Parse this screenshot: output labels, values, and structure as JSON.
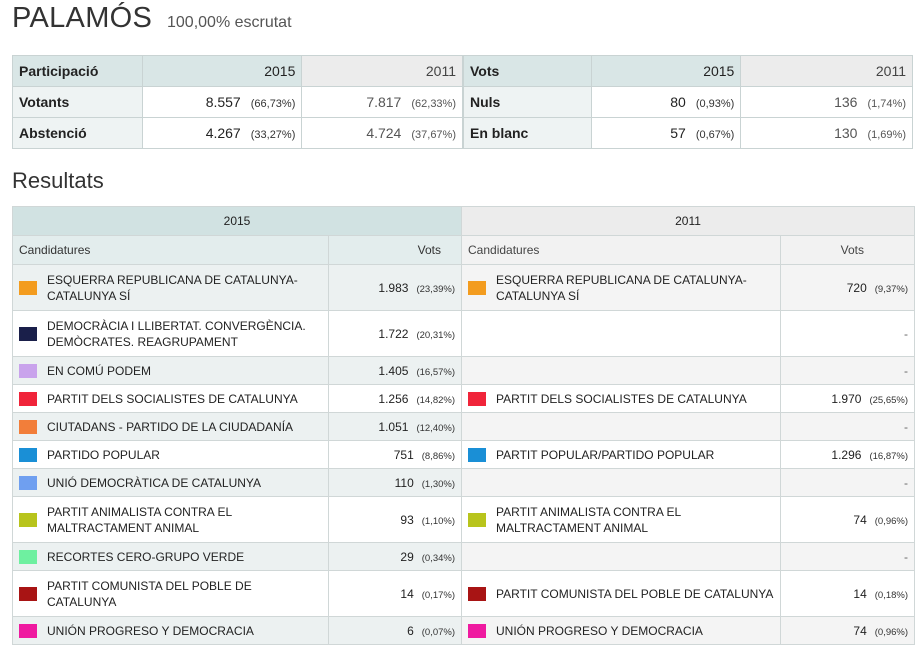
{
  "header": {
    "title": "PALAMÓS",
    "subtitle": "100,00% escrutat"
  },
  "participation": {
    "label": "Participació",
    "year_2015": "2015",
    "year_2011": "2011",
    "rows": [
      {
        "label": "Votants",
        "v2015": "8.557",
        "p2015": "(66,73%)",
        "v2011": "7.817",
        "p2011": "(62,33%)"
      },
      {
        "label": "Abstenció",
        "v2015": "4.267",
        "p2015": "(33,27%)",
        "v2011": "4.724",
        "p2011": "(37,67%)"
      }
    ]
  },
  "votes": {
    "label": "Vots",
    "year_2015": "2015",
    "year_2011": "2011",
    "rows": [
      {
        "label": "Nuls",
        "v2015": "80",
        "p2015": "(0,93%)",
        "v2011": "136",
        "p2011": "(1,74%)"
      },
      {
        "label": "En blanc",
        "v2015": "57",
        "p2015": "(0,67%)",
        "v2011": "130",
        "p2011": "(1,69%)"
      }
    ]
  },
  "results": {
    "heading": "Resultats",
    "year_2015": "2015",
    "year_2011": "2011",
    "col_candidates": "Candidatures",
    "col_votes": "Vots",
    "rows": [
      {
        "c15": "ESQUERRA REPUBLICANA DE CATALUNYA-CATALUNYA SÍ",
        "col15": "#f39c1f",
        "v15": "1.983",
        "p15": "(23,39%)",
        "c11": "ESQUERRA REPUBLICANA DE CATALUNYA-CATALUNYA SÍ",
        "col11": "#f39c1f",
        "v11": "720",
        "p11": "(9,37%)"
      },
      {
        "c15": "DEMOCRÀCIA I LLIBERTAT. CONVERGÈNCIA. DEMÒCRATES. REAGRUPAMENT",
        "col15": "#1a1f4a",
        "v15": "1.722",
        "p15": "(20,31%)",
        "c11": "",
        "col11": "",
        "v11": "-",
        "p11": ""
      },
      {
        "c15": "EN COMÚ PODEM",
        "col15": "#c9a3ec",
        "v15": "1.405",
        "p15": "(16,57%)",
        "c11": "",
        "col11": "",
        "v11": "-",
        "p11": ""
      },
      {
        "c15": "PARTIT DELS SOCIALISTES DE CATALUNYA",
        "col15": "#f0243a",
        "v15": "1.256",
        "p15": "(14,82%)",
        "c11": "PARTIT DELS SOCIALISTES DE CATALUNYA",
        "col11": "#f0243a",
        "v11": "1.970",
        "p11": "(25,65%)"
      },
      {
        "c15": "CIUTADANS - PARTIDO DE LA CIUDADANÍA",
        "col15": "#f27e3a",
        "v15": "1.051",
        "p15": "(12,40%)",
        "c11": "",
        "col11": "",
        "v11": "-",
        "p11": ""
      },
      {
        "c15": "PARTIDO POPULAR",
        "col15": "#1a8fd6",
        "v15": "751",
        "p15": "(8,86%)",
        "c11": "PARTIT POPULAR/PARTIDO POPULAR",
        "col11": "#1a8fd6",
        "v11": "1.296",
        "p11": "(16,87%)"
      },
      {
        "c15": "UNIÓ DEMOCRÀTICA DE CATALUNYA",
        "col15": "#6f9ff0",
        "v15": "110",
        "p15": "(1,30%)",
        "c11": "",
        "col11": "",
        "v11": "-",
        "p11": ""
      },
      {
        "c15": "PARTIT ANIMALISTA CONTRA EL MALTRACTAMENT ANIMAL",
        "col15": "#b8c41c",
        "v15": "93",
        "p15": "(1,10%)",
        "c11": "PARTIT ANIMALISTA CONTRA EL MALTRACTAMENT ANIMAL",
        "col11": "#b8c41c",
        "v11": "74",
        "p11": "(0,96%)"
      },
      {
        "c15": "RECORTES CERO-GRUPO VERDE",
        "col15": "#6ef0a0",
        "v15": "29",
        "p15": "(0,34%)",
        "c11": "",
        "col11": "",
        "v11": "-",
        "p11": ""
      },
      {
        "c15": "PARTIT COMUNISTA DEL POBLE DE CATALUNYA",
        "col15": "#a81414",
        "v15": "14",
        "p15": "(0,17%)",
        "c11": "PARTIT COMUNISTA DEL POBLE DE CATALUNYA",
        "col11": "#a81414",
        "v11": "14",
        "p11": "(0,18%)"
      },
      {
        "c15": "UNIÓN PROGRESO Y DEMOCRACIA",
        "col15": "#ef1aa0",
        "v15": "6",
        "p15": "(0,07%)",
        "c11": "UNIÓN PROGRESO Y DEMOCRACIA",
        "col11": "#ef1aa0",
        "v11": "74",
        "p11": "(0,96%)"
      }
    ]
  }
}
